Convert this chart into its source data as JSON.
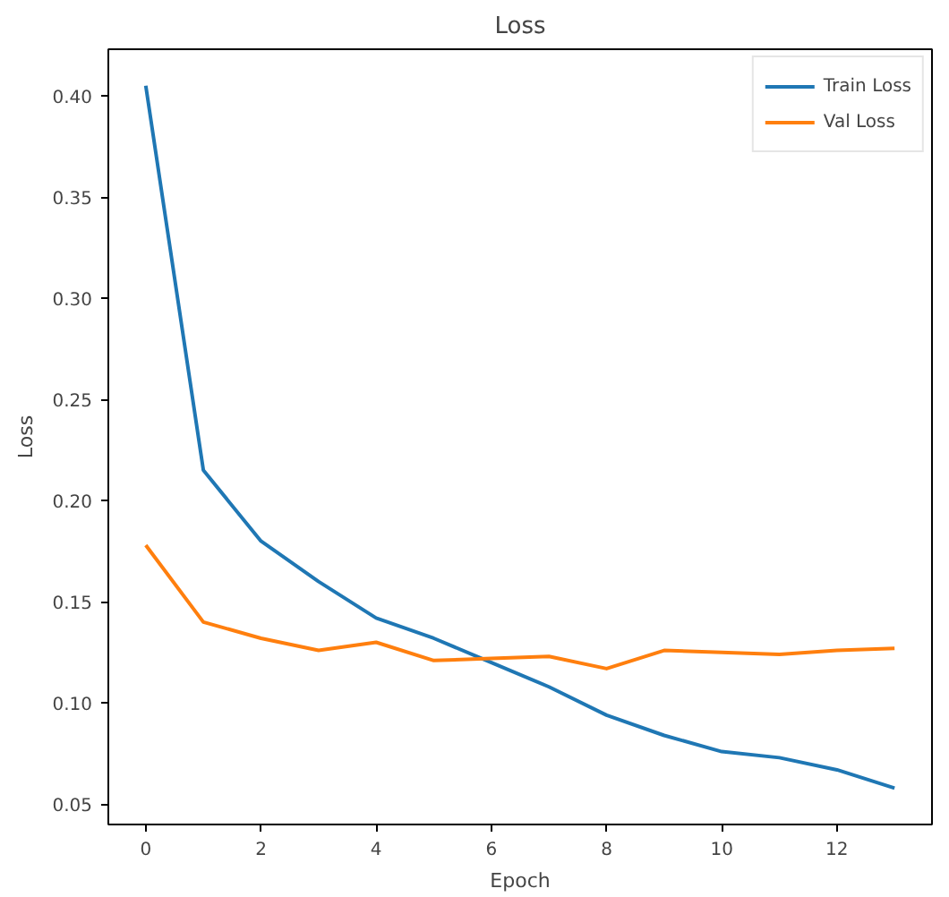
{
  "chart_data": {
    "type": "line",
    "title": "Loss",
    "xlabel": "Epoch",
    "ylabel": "Loss",
    "x": [
      0,
      1,
      2,
      3,
      4,
      5,
      6,
      7,
      8,
      9,
      10,
      11,
      12,
      13
    ],
    "series": [
      {
        "name": "Train Loss",
        "color": "#1f77b4",
        "values": [
          0.405,
          0.215,
          0.18,
          0.16,
          0.142,
          0.132,
          0.12,
          0.108,
          0.094,
          0.084,
          0.076,
          0.073,
          0.067,
          0.058
        ]
      },
      {
        "name": "Val Loss",
        "color": "#ff7f0e",
        "values": [
          0.178,
          0.14,
          0.132,
          0.126,
          0.13,
          0.121,
          0.122,
          0.123,
          0.117,
          0.126,
          0.125,
          0.124,
          0.126,
          0.127
        ]
      }
    ],
    "xlim": [
      -0.65,
      13.65
    ],
    "ylim": [
      0.04,
      0.423
    ],
    "xticks": [
      0,
      2,
      4,
      6,
      8,
      10,
      12
    ],
    "yticks": [
      {
        "value": 0.05,
        "label": "0.05"
      },
      {
        "value": 0.1,
        "label": "0.10"
      },
      {
        "value": 0.15,
        "label": "0.15"
      },
      {
        "value": 0.2,
        "label": "0.20"
      },
      {
        "value": 0.25,
        "label": "0.25"
      },
      {
        "value": 0.3,
        "label": "0.30"
      },
      {
        "value": 0.35,
        "label": "0.35"
      },
      {
        "value": 0.4,
        "label": "0.40"
      }
    ],
    "legend": "top right",
    "grid": false,
    "line_style": "solid"
  }
}
